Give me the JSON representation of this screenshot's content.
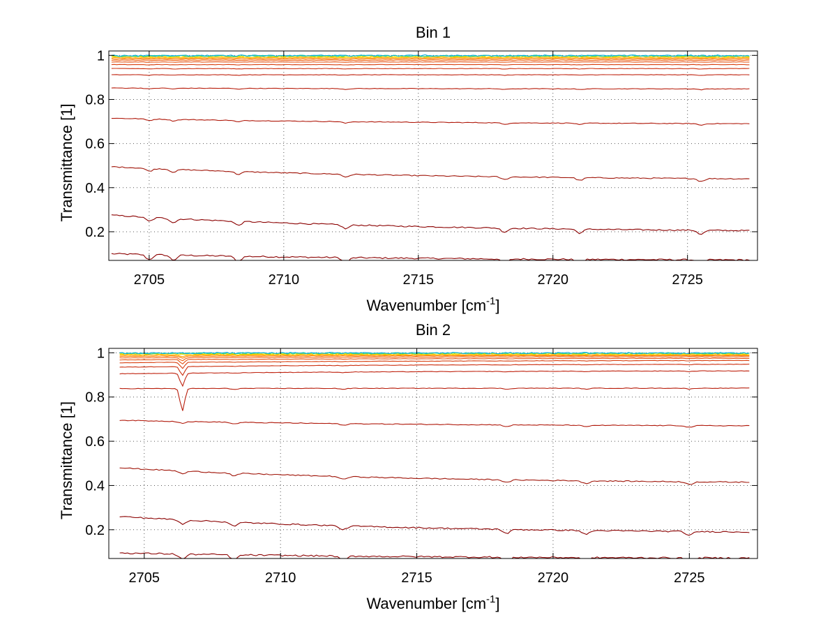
{
  "chart_data": [
    {
      "type": "line",
      "title": "Bin 1",
      "xlabel": "Wavenumber [cm",
      "xlabel_sup": "-1",
      "xlabel_end": "]",
      "ylabel": "Transmittance [1]",
      "xlim": [
        2703.5,
        2727.6
      ],
      "ylim": [
        0.07,
        1.02
      ],
      "xticks": [
        2705,
        2710,
        2715,
        2720,
        2725
      ],
      "yticks": [
        0.2,
        0.4,
        0.6,
        0.8,
        1
      ],
      "ytick_labels": [
        "0.2",
        "0.4",
        "0.6",
        "0.8",
        "1"
      ],
      "grid": true,
      "x_start": 2703.6,
      "x_end": 2727.3,
      "dips": [
        2705.0,
        2705.9,
        2708.3,
        2712.3,
        2718.2,
        2721.0,
        2725.5
      ],
      "series": [
        {
          "start": 0.1,
          "end": 0.072,
          "color": "#8b0000"
        },
        {
          "start": 0.275,
          "end": 0.205,
          "color": "#8b0000"
        },
        {
          "start": 0.495,
          "end": 0.44,
          "color": "#a01408"
        },
        {
          "start": 0.715,
          "end": 0.69,
          "color": "#b0180a"
        },
        {
          "start": 0.852,
          "end": 0.848,
          "color": "#b81e0c"
        },
        {
          "start": 0.912,
          "end": 0.912,
          "color": "#c02410"
        },
        {
          "start": 0.94,
          "end": 0.94,
          "color": "#cc3010"
        },
        {
          "start": 0.958,
          "end": 0.958,
          "color": "#d84010"
        },
        {
          "start": 0.97,
          "end": 0.97,
          "color": "#e45010"
        },
        {
          "start": 0.978,
          "end": 0.978,
          "color": "#f06010"
        },
        {
          "start": 0.984,
          "end": 0.984,
          "color": "#ff7a00"
        },
        {
          "start": 0.989,
          "end": 0.989,
          "color": "#ffa000"
        },
        {
          "start": 0.993,
          "end": 0.993,
          "color": "#ffd000"
        },
        {
          "start": 0.996,
          "end": 0.996,
          "color": "#c8e000"
        },
        {
          "start": 0.998,
          "end": 0.998,
          "color": "#20d0a0"
        },
        {
          "start": 0.999,
          "end": 0.999,
          "color": "#10b0e0"
        }
      ]
    },
    {
      "type": "line",
      "title": "Bin 2",
      "xlabel": "Wavenumber [cm",
      "xlabel_sup": "-1",
      "xlabel_end": "]",
      "ylabel": "Transmittance [1]",
      "xlim": [
        2703.7,
        2727.5
      ],
      "ylim": [
        0.07,
        1.02
      ],
      "xticks": [
        2705,
        2710,
        2715,
        2720,
        2725
      ],
      "yticks": [
        0.2,
        0.4,
        0.6,
        0.8,
        1
      ],
      "ytick_labels": [
        "0.2",
        "0.4",
        "0.6",
        "0.8",
        "1"
      ],
      "grid": true,
      "x_start": 2704.1,
      "x_end": 2727.2,
      "dips": [
        2706.4,
        2708.3,
        2712.3,
        2718.3,
        2721.2,
        2725.0
      ],
      "big_dip": 2706.4,
      "series": [
        {
          "start": 0.095,
          "end": 0.072,
          "color": "#8b0000"
        },
        {
          "start": 0.26,
          "end": 0.19,
          "color": "#8b0000"
        },
        {
          "start": 0.48,
          "end": 0.415,
          "color": "#a01408"
        },
        {
          "start": 0.695,
          "end": 0.67,
          "color": "#b0180a"
        },
        {
          "start": 0.838,
          "end": 0.84,
          "color": "#b81e0c"
        },
        {
          "start": 0.905,
          "end": 0.918,
          "color": "#c02410"
        },
        {
          "start": 0.935,
          "end": 0.948,
          "color": "#cc3010"
        },
        {
          "start": 0.955,
          "end": 0.965,
          "color": "#d84010"
        },
        {
          "start": 0.968,
          "end": 0.975,
          "color": "#e45010"
        },
        {
          "start": 0.977,
          "end": 0.982,
          "color": "#f06010"
        },
        {
          "start": 0.984,
          "end": 0.987,
          "color": "#ff7a00"
        },
        {
          "start": 0.989,
          "end": 0.991,
          "color": "#ffa000"
        },
        {
          "start": 0.993,
          "end": 0.994,
          "color": "#ffd000"
        },
        {
          "start": 0.996,
          "end": 0.996,
          "color": "#c8e000"
        },
        {
          "start": 0.998,
          "end": 0.998,
          "color": "#20d0a0"
        },
        {
          "start": 0.999,
          "end": 0.999,
          "color": "#10b0e0"
        }
      ]
    }
  ]
}
